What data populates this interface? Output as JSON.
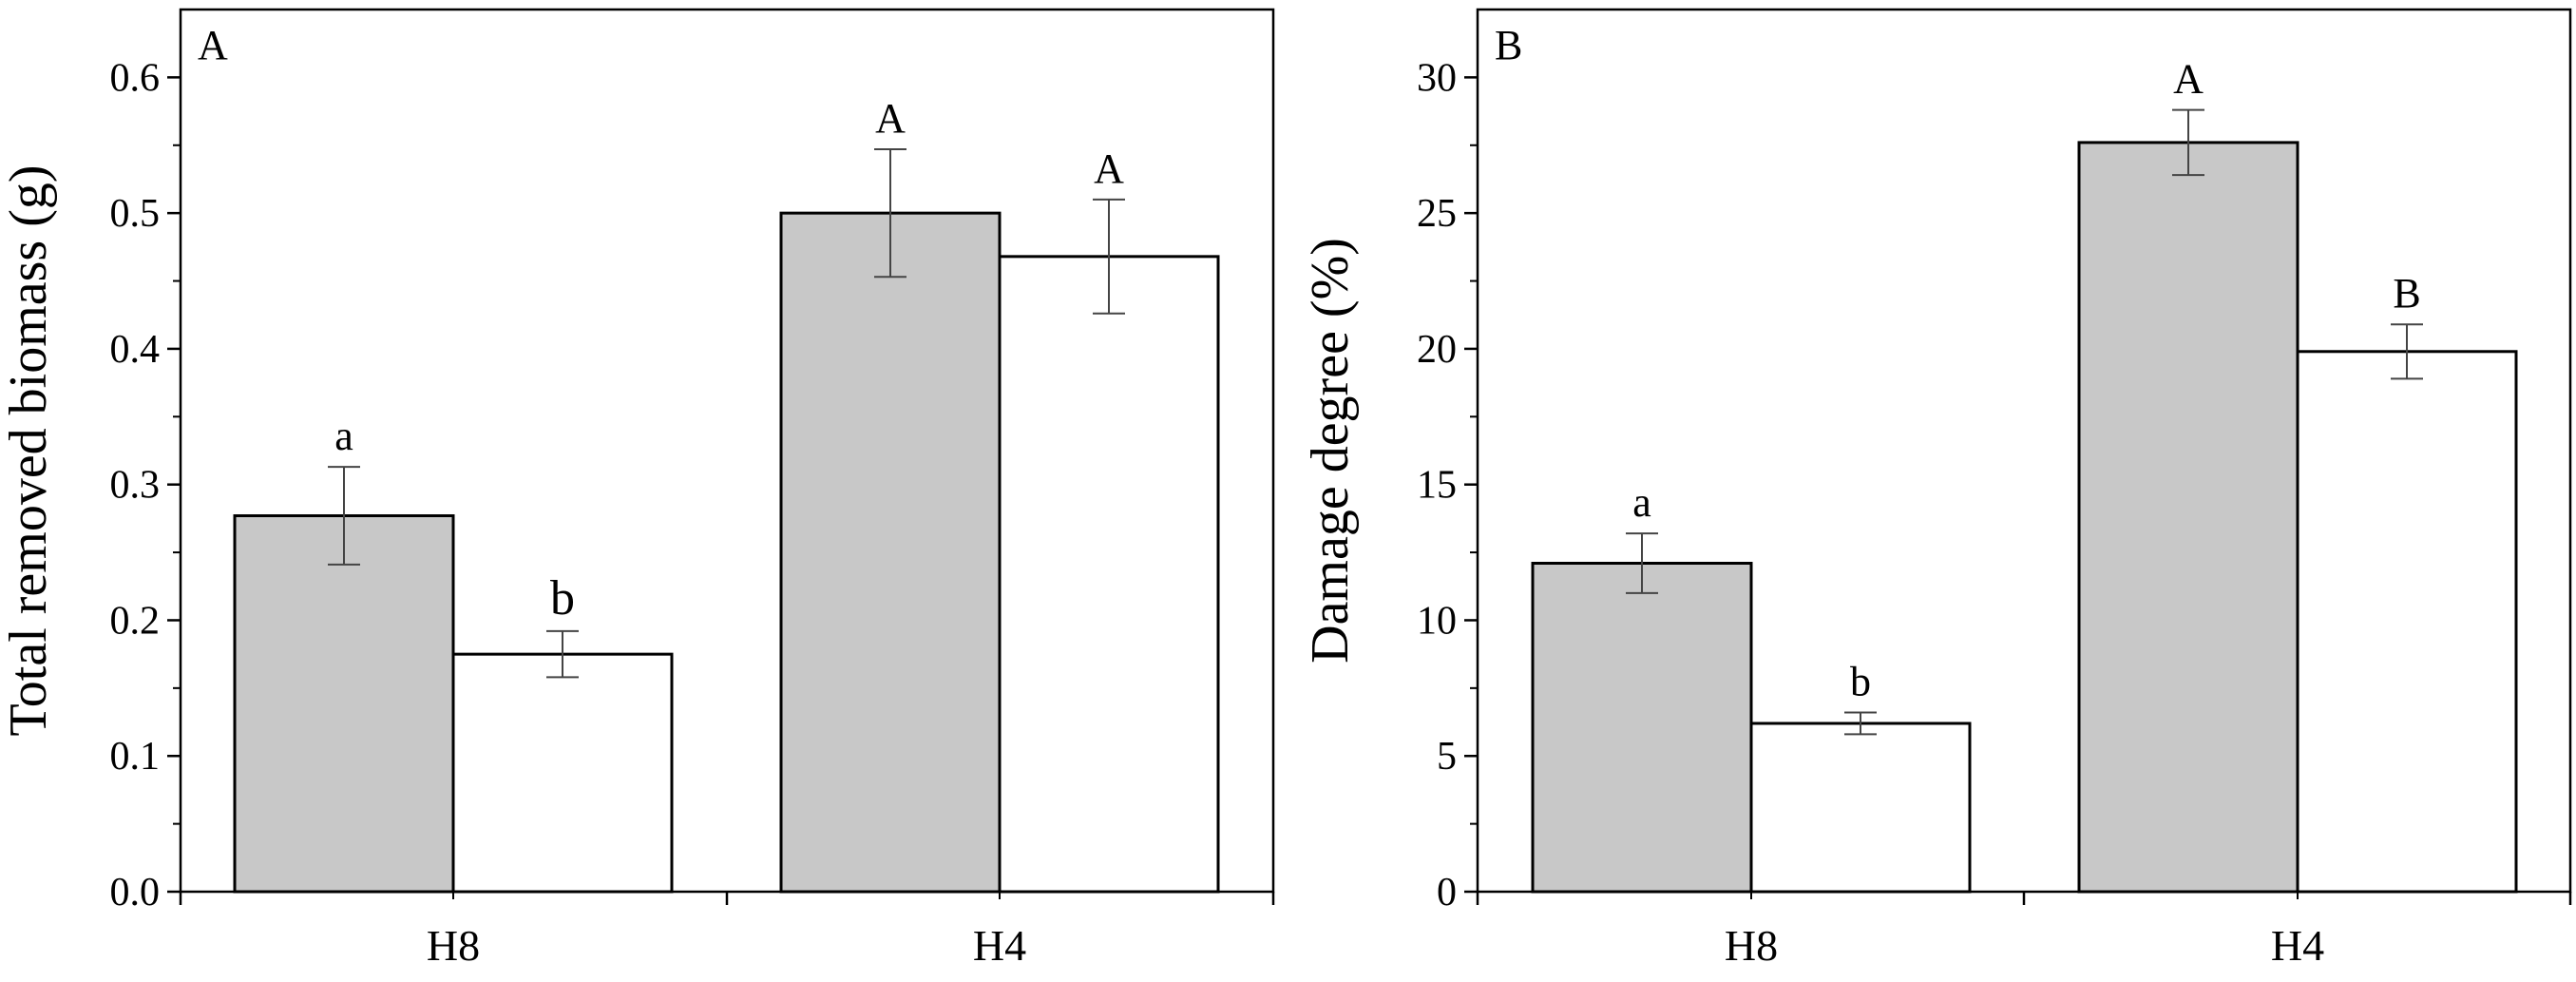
{
  "colors": {
    "gray_bar": "#c8c8c8",
    "white_bar": "#ffffff",
    "stroke": "#000000",
    "error_bar": "#444444"
  },
  "chart_data": [
    {
      "type": "bar",
      "panel_label": "A",
      "title": "",
      "xlabel": "",
      "ylabel": "Total removed biomass (g)",
      "ylim": [
        0,
        0.65
      ],
      "yticks": [
        "0.0",
        "0.1",
        "0.2",
        "0.3",
        "0.4",
        "0.5",
        "0.6"
      ],
      "categories": [
        "H8",
        "H4"
      ],
      "series": [
        {
          "color": "#c8c8c8",
          "values": [
            0.277,
            0.5
          ],
          "errors": [
            0.036,
            0.047
          ],
          "letters": [
            "a",
            "A"
          ],
          "letter_sizes": [
            "small",
            "small"
          ]
        },
        {
          "color": "#ffffff",
          "values": [
            0.175,
            0.468
          ],
          "errors": [
            0.017,
            0.042
          ],
          "letters": [
            "b",
            "A"
          ],
          "letter_sizes": [
            "large",
            "small"
          ]
        }
      ],
      "grid": false,
      "legend": "none"
    },
    {
      "type": "bar",
      "panel_label": "B",
      "title": "",
      "xlabel": "",
      "ylabel": "Damage degree (%)",
      "ylim": [
        0,
        32.5
      ],
      "yticks": [
        "0",
        "5",
        "10",
        "15",
        "20",
        "25",
        "30"
      ],
      "categories": [
        "H8",
        "H4"
      ],
      "series": [
        {
          "color": "#c8c8c8",
          "values": [
            12.1,
            27.6
          ],
          "errors": [
            1.1,
            1.2
          ],
          "letters": [
            "a",
            "A"
          ],
          "letter_sizes": [
            "small",
            "small"
          ]
        },
        {
          "color": "#ffffff",
          "values": [
            6.2,
            19.9
          ],
          "errors": [
            0.4,
            1.0
          ],
          "letters": [
            "b",
            "B"
          ],
          "letter_sizes": [
            "small",
            "small"
          ]
        }
      ],
      "grid": false,
      "legend": "none"
    }
  ]
}
